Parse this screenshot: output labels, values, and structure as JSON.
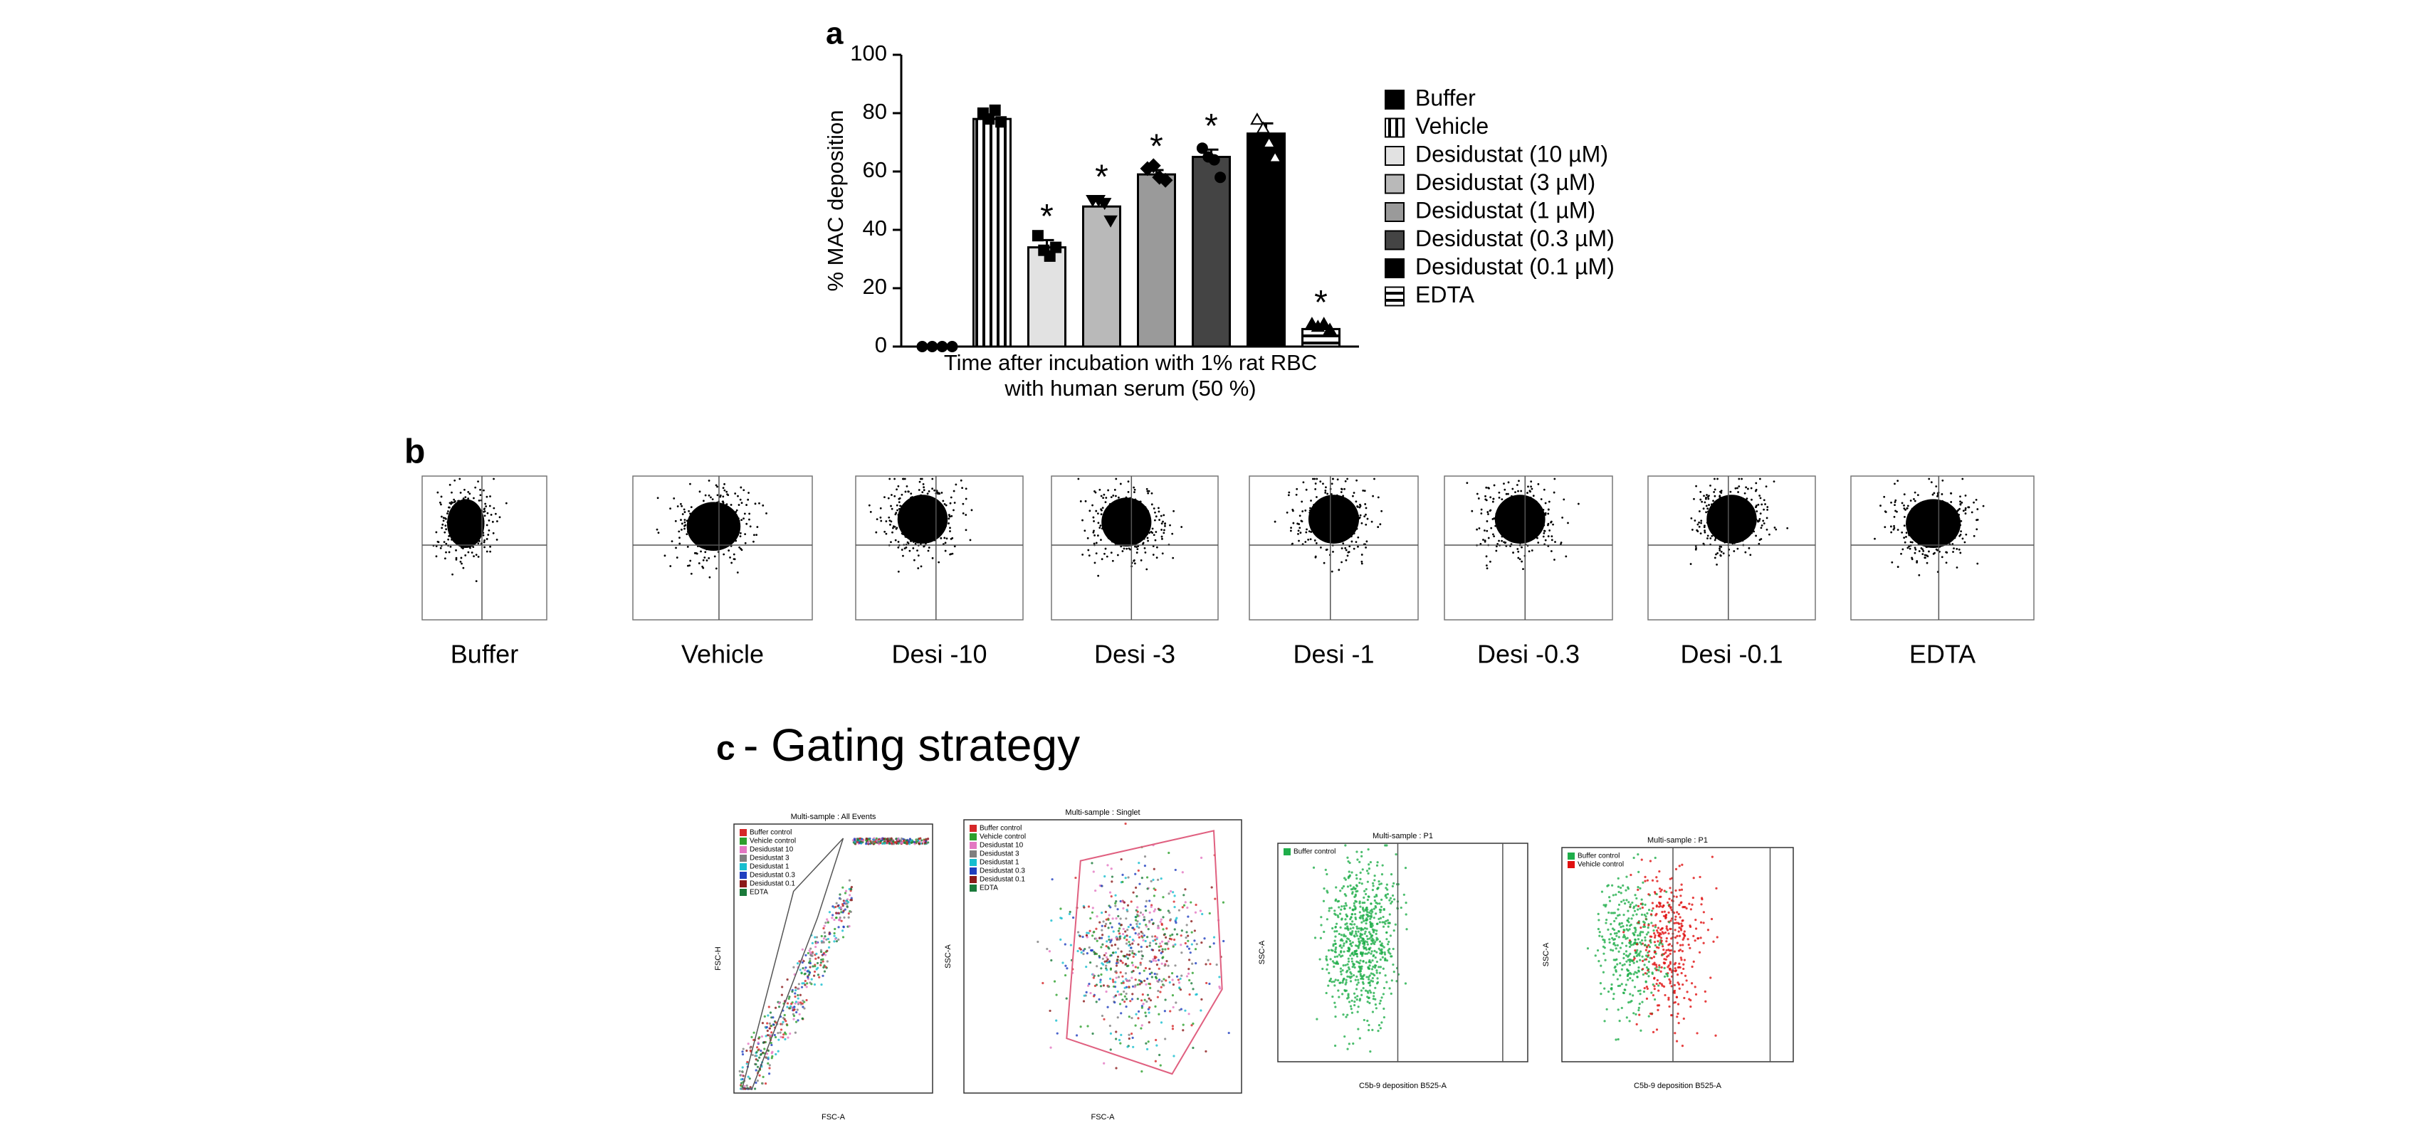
{
  "chart_data": {
    "type": "bar",
    "panel_label": "a",
    "ylabel": "% MAC deposition",
    "xlabel": [
      "Time after incubation with 1% rat RBC",
      "with human serum (50 %)"
    ],
    "ylim": [
      0,
      100
    ],
    "yticks": [
      0,
      20,
      40,
      60,
      80,
      100
    ],
    "series": [
      {
        "name": "Buffer",
        "color": "#000000",
        "pattern": "solid",
        "values": [
          0
        ],
        "errors": [
          0
        ],
        "points": [
          0,
          0,
          0,
          0
        ],
        "point_marker": "circle",
        "point_color": "#000000",
        "marker": null
      },
      {
        "name": "Vehicle",
        "color": "#000000",
        "pattern": "vertical",
        "values": [
          78
        ],
        "errors": [
          1.5
        ],
        "points": [
          80,
          78,
          81,
          77
        ],
        "point_marker": "square",
        "point_color": "#000000",
        "marker": null
      },
      {
        "name": "Desidustat (10 µM)",
        "color": "#e2e2e2",
        "pattern": "solid",
        "values": [
          34
        ],
        "errors": [
          2.5
        ],
        "points": [
          38,
          33,
          31,
          34
        ],
        "point_marker": "square",
        "point_color": "#000000",
        "marker": "*"
      },
      {
        "name": "Desidustat (3 µM)",
        "color": "#b9b9b9",
        "pattern": "solid",
        "values": [
          48
        ],
        "errors": [
          2
        ],
        "points": [
          50,
          50,
          49,
          43
        ],
        "point_marker": "triangle-down",
        "point_color": "#000000",
        "marker": "*"
      },
      {
        "name": "Desidustat (1 µM)",
        "color": "#9a9a9a",
        "pattern": "solid",
        "values": [
          59
        ],
        "errors": [
          1.5
        ],
        "points": [
          61,
          62,
          58,
          57
        ],
        "point_marker": "diamond",
        "point_color": "#000000",
        "marker": "*"
      },
      {
        "name": "Desidustat (0.3 µM)",
        "color": "#444444",
        "pattern": "solid",
        "values": [
          65
        ],
        "errors": [
          2.5
        ],
        "points": [
          68,
          65,
          64,
          58
        ],
        "point_marker": "circle",
        "point_color": "#000000",
        "marker": "*"
      },
      {
        "name": "Desidustat (0.1 µM)",
        "color": "#000000",
        "pattern": "solid",
        "values": [
          73
        ],
        "errors": [
          3.5
        ],
        "points": [
          78,
          75,
          70,
          65
        ],
        "point_marker": "triangle-up",
        "point_color": "#ffffff",
        "marker": null
      },
      {
        "name": "EDTA",
        "color": "#000000",
        "pattern": "horizontal",
        "values": [
          6
        ],
        "errors": [
          1
        ],
        "points": [
          8,
          7,
          8,
          6
        ],
        "point_marker": "triangle-up",
        "point_color": "#000000",
        "marker": "*"
      }
    ]
  },
  "panel_b": {
    "label": "b",
    "captions": [
      "Buffer",
      "Vehicle",
      "Desi -10",
      "Desi -3",
      "Desi -1",
      "Desi -0.3",
      "Desi -0.1",
      "EDTA"
    ]
  },
  "panel_c": {
    "label": "c",
    "title": "- Gating strategy",
    "plots": [
      {
        "title": "Multi-sample : All Events",
        "xlabel": "FSC-A",
        "ylabel": "FSC-H",
        "legend": [
          "Buffer control",
          "Vehicle control",
          "Desidustat 10",
          "Desidustat 3",
          "Desidustat 1",
          "Desidustat 0.3",
          "Desidustat 0.1",
          "EDTA"
        ],
        "colors": [
          "#d62728",
          "#2ca02c",
          "#e377c2",
          "#7f7f7f",
          "#17becf",
          "#1f3fbf",
          "#8b1a1a",
          "#1a7a3a"
        ]
      },
      {
        "title": "Multi-sample : Singlet",
        "xlabel": "FSC-A",
        "ylabel": "SSC-A",
        "legend": [
          "Buffer control",
          "Vehicle control",
          "Desidustat 10",
          "Desidustat 3",
          "Desidustat 1",
          "Desidustat 0.3",
          "Desidustat 0.1",
          "EDTA"
        ],
        "colors": [
          "#d62728",
          "#2ca02c",
          "#e377c2",
          "#7f7f7f",
          "#17becf",
          "#1f3fbf",
          "#8b1a1a",
          "#1a7a3a"
        ]
      },
      {
        "title": "Multi-sample : P1",
        "xlabel": "C5b-9 deposition B525-A",
        "ylabel": "SSC-A",
        "legend": [
          "Buffer control"
        ],
        "colors": [
          "#1fae4a"
        ]
      },
      {
        "title": "Multi-sample : P1",
        "xlabel": "C5b-9 deposition B525-A",
        "ylabel": "SSC-A",
        "legend": [
          "Buffer control",
          "Vehicle control"
        ],
        "colors": [
          "#1fae4a",
          "#e01010"
        ]
      }
    ]
  }
}
